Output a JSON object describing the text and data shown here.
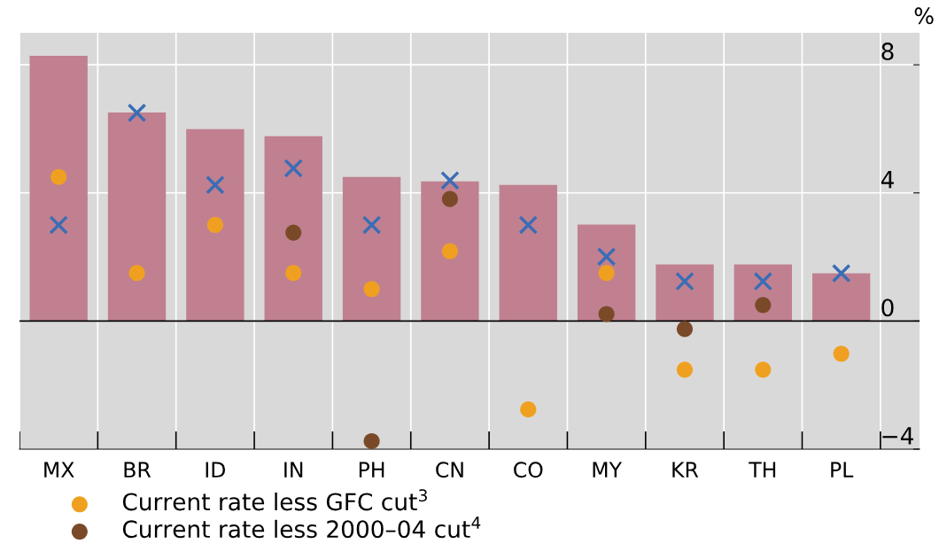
{
  "chart_data": {
    "type": "bar",
    "categories": [
      "MX",
      "BR",
      "ID",
      "IN",
      "PH",
      "CN",
      "CO",
      "MY",
      "KR",
      "TH",
      "PL"
    ],
    "ylabel": "%",
    "ylim": [
      -4,
      9
    ],
    "yticks": [
      {
        "value": -4,
        "label": "−4"
      },
      0,
      4,
      8
    ],
    "grid": true,
    "legend": "bottom left",
    "series": [
      {
        "color": "#c08090",
        "values": [
          8.28,
          6.51,
          5.99,
          5.77,
          4.5,
          4.36,
          4.25,
          3.01,
          1.77,
          1.77,
          1.49
        ]
      },
      {
        "type": "scatter",
        "marker": "cross",
        "color": "#3a6db5",
        "values": [
          3.0,
          6.5,
          4.25,
          4.77,
          3.0,
          4.39,
          3.0,
          2.01,
          1.24,
          1.24,
          1.49
        ]
      },
      {
        "type": "scatter",
        "marker": "circle",
        "name": "Current rate less GFC cut$^{3}$",
        "color": "#f0a020",
        "values": [
          4.5,
          1.5,
          3.0,
          1.5,
          1.0,
          2.18,
          -2.76,
          1.5,
          -1.52,
          -1.52,
          -1.02
        ]
      },
      {
        "type": "scatter",
        "marker": "circle",
        "name": "Current rate less 2000–04 cut$^{4}$",
        "color": "#7a4a28",
        "values": [
          null,
          null,
          null,
          2.76,
          -3.75,
          3.81,
          null,
          0.22,
          -0.25,
          0.5,
          null
        ]
      }
    ]
  }
}
